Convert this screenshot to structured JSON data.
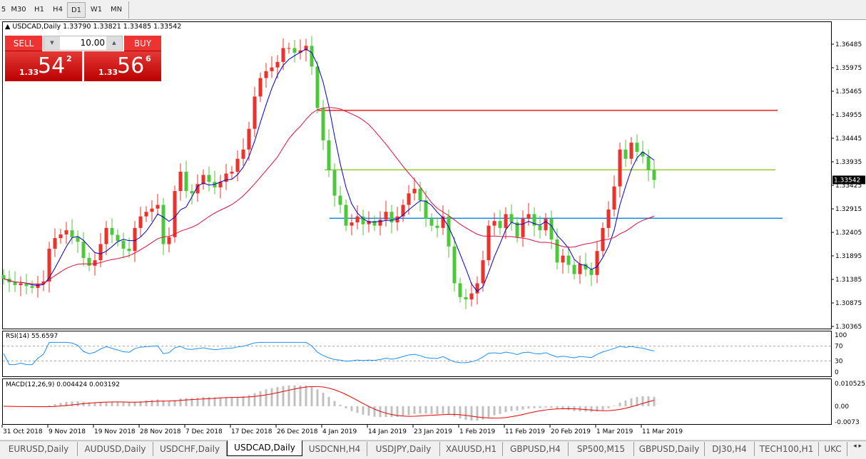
{
  "timeframes": [
    "5",
    "M30",
    "H1",
    "H4",
    "D1",
    "W1",
    "MN"
  ],
  "active_timeframe": "D1",
  "chart": {
    "header": "USDCAD,Daily  1.33790 1.33821 1.33485 1.33542",
    "sell_label": "SELL",
    "buy_label": "BUY",
    "lot": "10.00",
    "sell_price": {
      "prefix": "1.33",
      "big": "54",
      "sup": "2"
    },
    "buy_price": {
      "prefix": "1.33",
      "big": "56",
      "sup": "6"
    },
    "current_price": "1.33542"
  },
  "colors": {
    "bull": "#f0302a",
    "bear": "#4cc83a",
    "ma_fast": "#0000cc",
    "ma_slow": "#dd1040",
    "line_red": "#ee2222",
    "line_green": "#9acd32",
    "line_blue": "#1e88e5",
    "rsi": "#1e90ff",
    "macd_hist": "#c0c0c0",
    "macd_signal": "#ee0000"
  },
  "chart_data": {
    "type": "candlestick",
    "symbol": "USDCAD",
    "timeframe": "Daily",
    "y_ticks": [
      "1.36485",
      "1.35975",
      "1.35465",
      "1.34955",
      "1.34445",
      "1.33935",
      "1.33425",
      "1.32915",
      "1.32405",
      "1.31895",
      "1.31385",
      "1.30875",
      "1.30365"
    ],
    "x_labels": [
      "31 Oct 2018",
      "9 Nov 2018",
      "19 Nov 2018",
      "28 Nov 2018",
      "7 Dec 2018",
      "17 Dec 2018",
      "26 Dec 2018",
      "4 Jan 2019",
      "14 Jan 2019",
      "23 Jan 2019",
      "1 Feb 2019",
      "11 Feb 2019",
      "20 Feb 2019",
      "1 Mar 2019",
      "11 Mar 2019"
    ],
    "closes": [
      1.314,
      1.3132,
      1.3126,
      1.313,
      1.3124,
      1.312,
      1.3128,
      1.3134,
      1.3205,
      1.3228,
      1.3236,
      1.3245,
      1.323,
      1.322,
      1.3185,
      1.3168,
      1.318,
      1.3215,
      1.325,
      1.3235,
      1.3222,
      1.3205,
      1.32,
      1.325,
      1.3275,
      1.3285,
      1.3292,
      1.33,
      1.3215,
      1.323,
      1.333,
      1.3372,
      1.333,
      1.3325,
      1.3345,
      1.3365,
      1.335,
      1.3338,
      1.335,
      1.3368,
      1.3372,
      1.34,
      1.342,
      1.3465,
      1.3535,
      1.3575,
      1.359,
      1.3598,
      1.361,
      1.364,
      1.364,
      1.363,
      1.3635,
      1.3645,
      1.36,
      1.351,
      1.344,
      1.3375,
      1.332,
      1.33,
      1.3255,
      1.3262,
      1.3275,
      1.3258,
      1.3265,
      1.3255,
      1.3268,
      1.3285,
      1.3262,
      1.3275,
      1.33,
      1.3325,
      1.3335,
      1.331,
      1.327,
      1.3255,
      1.325,
      1.3275,
      1.321,
      1.313,
      1.31,
      1.3095,
      1.3108,
      1.313,
      1.318,
      1.3255,
      1.3265,
      1.325,
      1.328,
      1.3262,
      1.323,
      1.327,
      1.328,
      1.3255,
      1.3245,
      1.327,
      1.3225,
      1.3175,
      1.319,
      1.317,
      1.315,
      1.3172,
      1.316,
      1.3148,
      1.32,
      1.325,
      1.329,
      1.334,
      1.342,
      1.34,
      1.3435,
      1.3415,
      1.3405,
      1.3375,
      1.3354
    ],
    "horizontal_lines": [
      1.3505,
      1.3376,
      1.3271
    ],
    "moving_averages": [
      "fast",
      "slow"
    ],
    "rsi": {
      "label": "RSI(14) 55.6597",
      "levels": [
        70,
        30
      ],
      "ticks": [
        "100",
        "70",
        "30",
        "0"
      ]
    },
    "macd": {
      "label": "MACD(12,26,9) 0.004424 0.003192",
      "ticks": [
        "0.010525",
        "0.00",
        "-0.0073"
      ]
    }
  },
  "tabs": [
    "EURUSD,Daily",
    "AUDUSD,Daily",
    "USDCHF,Daily",
    "USDCAD,Daily",
    "USDCNH,H4",
    "USDJPY,Daily",
    "XAUUSD,H1",
    "GBPUSD,H4",
    "SP500,M15",
    "GBPUSD,Daily",
    "DJ30,H4",
    "TECH100,H1",
    "UKC"
  ],
  "active_tab": "USDCAD,Daily"
}
